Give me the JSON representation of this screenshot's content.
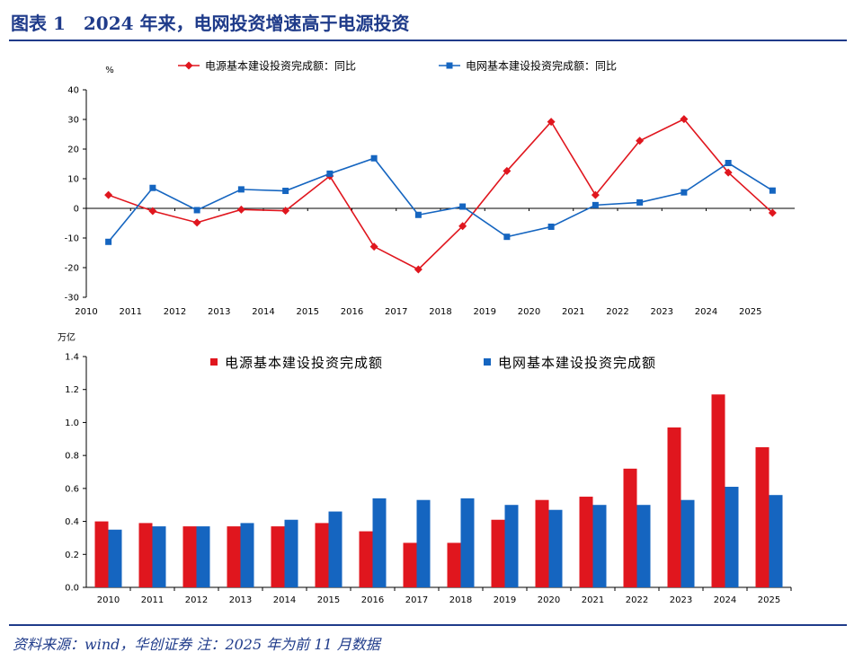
{
  "header": {
    "title": "图表 1　2024 年来，电网投资增速高于电源投资"
  },
  "footer": {
    "source": "资料来源：wind，华创证券 注：2025 年为前 11 月数据"
  },
  "colors": {
    "red": "#e0161e",
    "blue": "#1565c0",
    "title_blue": "#1f3b8a"
  },
  "chart_data": [
    {
      "type": "line",
      "ylabel": "%",
      "ylim": [
        -30,
        40
      ],
      "yticks": [
        -30,
        -20,
        -10,
        0,
        10,
        20,
        30,
        40
      ],
      "legend_position": "top",
      "grid": false,
      "x": [
        "2010",
        "2011",
        "2012",
        "2013",
        "2014",
        "2015",
        "2016",
        "2017",
        "2018",
        "2019",
        "2020",
        "2021",
        "2022",
        "2023",
        "2024",
        "2025"
      ],
      "series": [
        {
          "name": "电源基本建设投资完成额：同比",
          "color": "#e0161e",
          "marker": "diamond",
          "values": [
            4.5,
            -0.9,
            -4.8,
            -0.4,
            -0.8,
            10.9,
            -12.9,
            -20.6,
            -6.0,
            12.6,
            29.2,
            4.5,
            22.8,
            30.1,
            12.1,
            -1.5
          ]
        },
        {
          "name": "电网基本建设投资完成额：同比",
          "color": "#1565c0",
          "marker": "square",
          "values": [
            -11.3,
            6.9,
            -0.6,
            6.4,
            5.9,
            11.7,
            16.9,
            -2.2,
            0.6,
            -9.6,
            -6.2,
            1.1,
            2.0,
            5.4,
            15.3,
            6.0
          ]
        }
      ]
    },
    {
      "type": "bar",
      "ylabel": "万亿",
      "ylim": [
        0,
        1.4
      ],
      "yticks": [
        "0.0",
        "0.2",
        "0.4",
        "0.6",
        "0.8",
        "1.0",
        "1.2",
        "1.4"
      ],
      "legend_position": "top",
      "grid": false,
      "categories": [
        "2010",
        "2011",
        "2012",
        "2013",
        "2014",
        "2015",
        "2016",
        "2017",
        "2018",
        "2019",
        "2020",
        "2021",
        "2022",
        "2023",
        "2024",
        "2025"
      ],
      "series": [
        {
          "name": "电源基本建设投资完成额",
          "color": "#e0161e",
          "values": [
            0.4,
            0.39,
            0.37,
            0.37,
            0.37,
            0.39,
            0.34,
            0.27,
            0.27,
            0.41,
            0.53,
            0.55,
            0.72,
            0.97,
            1.17,
            0.85
          ]
        },
        {
          "name": "电网基本建设投资完成额",
          "color": "#1565c0",
          "values": [
            0.35,
            0.37,
            0.37,
            0.39,
            0.41,
            0.46,
            0.54,
            0.53,
            0.54,
            0.5,
            0.47,
            0.5,
            0.5,
            0.53,
            0.61,
            0.56
          ]
        }
      ]
    }
  ]
}
